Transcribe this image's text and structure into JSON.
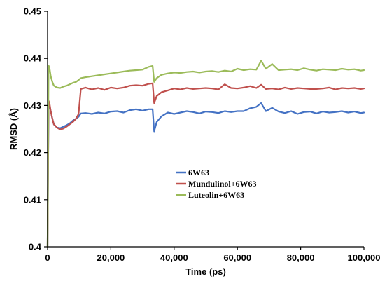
{
  "chart_data": {
    "type": "line",
    "xlabel": "Time (ps)",
    "ylabel": "RMSD (Å)",
    "xlim": [
      0,
      100000
    ],
    "ylim": [
      0.4,
      0.45
    ],
    "xticks": [
      0,
      20000,
      40000,
      60000,
      80000,
      100000
    ],
    "xtick_labels": [
      "0",
      "20,000",
      "40,000",
      "60,000",
      "80,000",
      "100,000"
    ],
    "yticks": [
      0.4,
      0.41,
      0.42,
      0.43,
      0.44,
      0.45
    ],
    "ytick_labels": [
      "0.4",
      "0.41",
      "0.42",
      "0.43",
      "0.44",
      "0.45"
    ],
    "grid": false,
    "legend_position": "center",
    "series": [
      {
        "name": "6W63",
        "color": "#4472C4",
        "x": [
          0,
          300,
          600,
          1000,
          1500,
          2000,
          3000,
          4000,
          5000,
          6000,
          7000,
          8000,
          9000,
          9800,
          10500,
          12000,
          14000,
          16000,
          18000,
          20000,
          22000,
          24000,
          26000,
          28000,
          30000,
          32000,
          33200,
          33700,
          34500,
          36000,
          38000,
          40000,
          42000,
          44000,
          46000,
          48000,
          50000,
          52000,
          54000,
          56000,
          58000,
          60000,
          62000,
          64000,
          66000,
          67500,
          69000,
          71000,
          73000,
          75000,
          77000,
          79000,
          81000,
          83000,
          85000,
          87000,
          89000,
          91000,
          93000,
          95000,
          97000,
          99000,
          100000
        ],
        "values": [
          0.4,
          0.43,
          0.43,
          0.4288,
          0.4272,
          0.426,
          0.4253,
          0.4252,
          0.4255,
          0.4258,
          0.4262,
          0.4268,
          0.4272,
          0.4276,
          0.4283,
          0.4284,
          0.4282,
          0.4285,
          0.4283,
          0.4287,
          0.4288,
          0.4285,
          0.429,
          0.4292,
          0.4289,
          0.4292,
          0.4292,
          0.4245,
          0.4265,
          0.4277,
          0.4285,
          0.4282,
          0.4285,
          0.4288,
          0.4286,
          0.4283,
          0.4287,
          0.4286,
          0.4284,
          0.4288,
          0.4286,
          0.4288,
          0.4288,
          0.4294,
          0.4297,
          0.4305,
          0.4288,
          0.4295,
          0.4287,
          0.4284,
          0.4288,
          0.4282,
          0.4286,
          0.4287,
          0.4283,
          0.4287,
          0.4285,
          0.4286,
          0.4288,
          0.4285,
          0.4287,
          0.4284,
          0.4285
        ]
      },
      {
        "name": "Mundulinol+6W63",
        "color": "#C0504D",
        "x": [
          0,
          300,
          600,
          1000,
          1500,
          2000,
          3000,
          4000,
          5000,
          6000,
          7000,
          8000,
          9000,
          9800,
          10500,
          12000,
          14000,
          16000,
          18000,
          20000,
          22000,
          24000,
          26000,
          28000,
          30000,
          32000,
          33200,
          33700,
          34500,
          36000,
          38000,
          40000,
          42000,
          44000,
          46000,
          48000,
          50000,
          52000,
          54000,
          56000,
          58000,
          60000,
          62000,
          64000,
          66000,
          67500,
          69000,
          71000,
          73000,
          75000,
          77000,
          79000,
          81000,
          83000,
          85000,
          87000,
          89000,
          91000,
          93000,
          95000,
          97000,
          99000,
          100000
        ],
        "values": [
          0.4,
          0.431,
          0.4305,
          0.4288,
          0.4272,
          0.426,
          0.4253,
          0.4249,
          0.4251,
          0.4255,
          0.426,
          0.4265,
          0.4272,
          0.4282,
          0.4335,
          0.4338,
          0.4334,
          0.4337,
          0.4333,
          0.4338,
          0.4336,
          0.4338,
          0.4342,
          0.4343,
          0.4342,
          0.4346,
          0.4347,
          0.4305,
          0.432,
          0.4328,
          0.4332,
          0.4336,
          0.4334,
          0.4337,
          0.4335,
          0.4336,
          0.4337,
          0.4336,
          0.4334,
          0.4345,
          0.4337,
          0.4336,
          0.4338,
          0.4341,
          0.4337,
          0.4344,
          0.4335,
          0.4336,
          0.4334,
          0.4338,
          0.4335,
          0.4337,
          0.4336,
          0.4335,
          0.4335,
          0.4336,
          0.4338,
          0.4334,
          0.4337,
          0.4336,
          0.4337,
          0.4335,
          0.4336
        ]
      },
      {
        "name": "Luteolin+6W63",
        "color": "#9BBB59",
        "x": [
          0,
          300,
          600,
          1000,
          1500,
          2000,
          3000,
          4000,
          5000,
          6000,
          7000,
          8000,
          9000,
          9800,
          10500,
          12000,
          14000,
          16000,
          18000,
          20000,
          22000,
          24000,
          26000,
          28000,
          30000,
          32000,
          33200,
          33700,
          34500,
          36000,
          38000,
          40000,
          42000,
          44000,
          46000,
          48000,
          50000,
          52000,
          54000,
          56000,
          58000,
          60000,
          62000,
          64000,
          66000,
          67500,
          69000,
          71000,
          73000,
          75000,
          77000,
          79000,
          81000,
          83000,
          85000,
          87000,
          89000,
          91000,
          93000,
          95000,
          97000,
          99000,
          100000
        ],
        "values": [
          0.4,
          0.4385,
          0.438,
          0.4362,
          0.435,
          0.4342,
          0.4338,
          0.4337,
          0.434,
          0.4342,
          0.4345,
          0.4348,
          0.435,
          0.4354,
          0.4358,
          0.436,
          0.4362,
          0.4364,
          0.4366,
          0.4368,
          0.437,
          0.4372,
          0.4374,
          0.4375,
          0.4376,
          0.4382,
          0.4384,
          0.435,
          0.4358,
          0.4365,
          0.4368,
          0.437,
          0.4369,
          0.4371,
          0.4372,
          0.437,
          0.4372,
          0.4373,
          0.4371,
          0.4374,
          0.4372,
          0.4378,
          0.4375,
          0.4377,
          0.4376,
          0.4395,
          0.4378,
          0.4388,
          0.4375,
          0.4376,
          0.4377,
          0.4375,
          0.4379,
          0.4376,
          0.4374,
          0.4377,
          0.4376,
          0.4375,
          0.4378,
          0.4376,
          0.4377,
          0.4374,
          0.4375
        ]
      }
    ]
  }
}
